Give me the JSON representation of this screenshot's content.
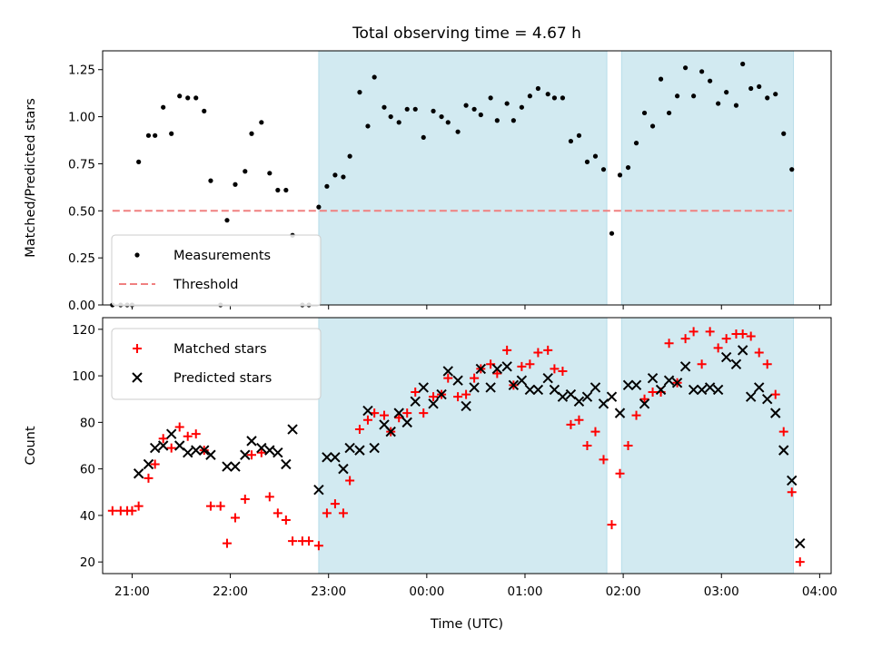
{
  "chart_data": [
    {
      "type": "scatter",
      "title": "Total observing time = 4.67 h",
      "xlabel": "",
      "ylabel": "Matched/Predicted stars",
      "xlim": [
        "20:42",
        "04:07"
      ],
      "ylim": [
        0,
        1.35
      ],
      "yticks": [
        "0.00",
        "0.25",
        "0.50",
        "0.75",
        "1.00",
        "1.25"
      ],
      "shaded_intervals": [
        [
          "22:54",
          "01:50"
        ],
        [
          "01:59",
          "03:44"
        ]
      ],
      "shade_color": "#add8e6",
      "legend_position": "lower-left",
      "series": [
        {
          "name": "Measurements",
          "style": "dot",
          "color": "#000000",
          "points": [
            [
              "20:48",
              0.0
            ],
            [
              "20:53",
              0.0
            ],
            [
              "20:57",
              0.0
            ],
            [
              "21:00",
              0.0
            ],
            [
              "21:04",
              0.76
            ],
            [
              "21:10",
              0.9
            ],
            [
              "21:14",
              0.9
            ],
            [
              "21:19",
              1.05
            ],
            [
              "21:24",
              0.91
            ],
            [
              "21:29",
              1.11
            ],
            [
              "21:34",
              1.1
            ],
            [
              "21:39",
              1.1
            ],
            [
              "21:44",
              1.03
            ],
            [
              "21:48",
              0.66
            ],
            [
              "21:54",
              0.0
            ],
            [
              "21:58",
              0.45
            ],
            [
              "22:03",
              0.64
            ],
            [
              "22:09",
              0.71
            ],
            [
              "22:13",
              0.91
            ],
            [
              "22:19",
              0.97
            ],
            [
              "22:24",
              0.7
            ],
            [
              "22:29",
              0.61
            ],
            [
              "22:34",
              0.61
            ],
            [
              "22:38",
              0.37
            ],
            [
              "22:44",
              0.0
            ],
            [
              "22:48",
              0.0
            ],
            [
              "22:54",
              0.52
            ],
            [
              "22:59",
              0.63
            ],
            [
              "23:04",
              0.69
            ],
            [
              "23:09",
              0.68
            ],
            [
              "23:13",
              0.79
            ],
            [
              "23:19",
              1.13
            ],
            [
              "23:24",
              0.95
            ],
            [
              "23:28",
              1.21
            ],
            [
              "23:34",
              1.05
            ],
            [
              "23:38",
              1.0
            ],
            [
              "23:43",
              0.97
            ],
            [
              "23:48",
              1.04
            ],
            [
              "23:53",
              1.04
            ],
            [
              "23:58",
              0.89
            ],
            [
              "00:04",
              1.03
            ],
            [
              "00:09",
              1.0
            ],
            [
              "00:13",
              0.97
            ],
            [
              "00:19",
              0.92
            ],
            [
              "00:24",
              1.06
            ],
            [
              "00:29",
              1.04
            ],
            [
              "00:33",
              1.01
            ],
            [
              "00:39",
              1.1
            ],
            [
              "00:43",
              0.98
            ],
            [
              "00:49",
              1.07
            ],
            [
              "00:53",
              0.98
            ],
            [
              "00:58",
              1.05
            ],
            [
              "01:03",
              1.11
            ],
            [
              "01:08",
              1.15
            ],
            [
              "01:14",
              1.12
            ],
            [
              "01:18",
              1.1
            ],
            [
              "01:23",
              1.1
            ],
            [
              "01:28",
              0.87
            ],
            [
              "01:33",
              0.9
            ],
            [
              "01:38",
              0.76
            ],
            [
              "01:43",
              0.79
            ],
            [
              "01:48",
              0.72
            ],
            [
              "01:53",
              0.38
            ],
            [
              "01:58",
              0.69
            ],
            [
              "02:03",
              0.73
            ],
            [
              "02:08",
              0.86
            ],
            [
              "02:13",
              1.02
            ],
            [
              "02:18",
              0.95
            ],
            [
              "02:23",
              1.2
            ],
            [
              "02:28",
              1.02
            ],
            [
              "02:33",
              1.11
            ],
            [
              "02:38",
              1.26
            ],
            [
              "02:43",
              1.11
            ],
            [
              "02:48",
              1.24
            ],
            [
              "02:53",
              1.19
            ],
            [
              "02:58",
              1.07
            ],
            [
              "03:03",
              1.13
            ],
            [
              "03:09",
              1.06
            ],
            [
              "03:13",
              1.28
            ],
            [
              "03:18",
              1.15
            ],
            [
              "03:23",
              1.16
            ],
            [
              "03:28",
              1.1
            ],
            [
              "03:33",
              1.12
            ],
            [
              "03:38",
              0.91
            ],
            [
              "03:43",
              0.72
            ]
          ]
        },
        {
          "name": "Threshold",
          "style": "dashed-line",
          "color": "#f08080",
          "points": [
            [
              "20:48",
              0.5
            ],
            [
              "03:43",
              0.5
            ]
          ]
        }
      ]
    },
    {
      "type": "scatter",
      "title": "",
      "xlabel": "Time (UTC)",
      "ylabel": "Count",
      "xlim": [
        "20:42",
        "04:07"
      ],
      "ylim": [
        15,
        125
      ],
      "yticks": [
        "20",
        "40",
        "60",
        "80",
        "100",
        "120"
      ],
      "xticks": [
        "21:00",
        "22:00",
        "23:00",
        "00:00",
        "01:00",
        "02:00",
        "03:00",
        "04:00"
      ],
      "shaded_intervals": [
        [
          "22:54",
          "01:50"
        ],
        [
          "01:59",
          "03:44"
        ]
      ],
      "shade_color": "#add8e6",
      "legend_position": "upper-left",
      "series": [
        {
          "name": "Matched stars",
          "style": "plus",
          "color": "#ff0000",
          "points": [
            [
              "20:48",
              42
            ],
            [
              "20:53",
              42
            ],
            [
              "20:57",
              42
            ],
            [
              "21:00",
              42
            ],
            [
              "21:04",
              44
            ],
            [
              "21:10",
              56
            ],
            [
              "21:14",
              62
            ],
            [
              "21:19",
              73
            ],
            [
              "21:24",
              69
            ],
            [
              "21:29",
              78
            ],
            [
              "21:34",
              74
            ],
            [
              "21:39",
              75
            ],
            [
              "21:44",
              68
            ],
            [
              "21:48",
              44
            ],
            [
              "21:54",
              44
            ],
            [
              "21:58",
              28
            ],
            [
              "22:03",
              39
            ],
            [
              "22:09",
              47
            ],
            [
              "22:13",
              66
            ],
            [
              "22:19",
              67
            ],
            [
              "22:24",
              48
            ],
            [
              "22:29",
              41
            ],
            [
              "22:34",
              38
            ],
            [
              "22:38",
              29
            ],
            [
              "22:44",
              29
            ],
            [
              "22:48",
              29
            ],
            [
              "22:54",
              27
            ],
            [
              "22:59",
              41
            ],
            [
              "23:04",
              45
            ],
            [
              "23:09",
              41
            ],
            [
              "23:13",
              55
            ],
            [
              "23:19",
              77
            ],
            [
              "23:24",
              81
            ],
            [
              "23:28",
              84
            ],
            [
              "23:34",
              83
            ],
            [
              "23:38",
              76
            ],
            [
              "23:43",
              82
            ],
            [
              "23:48",
              84
            ],
            [
              "23:53",
              93
            ],
            [
              "23:58",
              84
            ],
            [
              "00:04",
              91
            ],
            [
              "00:09",
              92
            ],
            [
              "00:13",
              99
            ],
            [
              "00:19",
              91
            ],
            [
              "00:24",
              92
            ],
            [
              "00:29",
              99
            ],
            [
              "00:33",
              103
            ],
            [
              "00:39",
              105
            ],
            [
              "00:43",
              101
            ],
            [
              "00:49",
              111
            ],
            [
              "00:53",
              96
            ],
            [
              "00:58",
              104
            ],
            [
              "01:03",
              105
            ],
            [
              "01:08",
              110
            ],
            [
              "01:14",
              111
            ],
            [
              "01:18",
              103
            ],
            [
              "01:23",
              102
            ],
            [
              "01:28",
              79
            ],
            [
              "01:33",
              81
            ],
            [
              "01:38",
              70
            ],
            [
              "01:43",
              76
            ],
            [
              "01:48",
              64
            ],
            [
              "01:53",
              36
            ],
            [
              "01:58",
              58
            ],
            [
              "02:03",
              70
            ],
            [
              "02:08",
              83
            ],
            [
              "02:13",
              90
            ],
            [
              "02:18",
              93
            ],
            [
              "02:23",
              93
            ],
            [
              "02:28",
              114
            ],
            [
              "02:33",
              97
            ],
            [
              "02:38",
              116
            ],
            [
              "02:43",
              119
            ],
            [
              "02:48",
              105
            ],
            [
              "02:53",
              119
            ],
            [
              "02:58",
              112
            ],
            [
              "03:03",
              116
            ],
            [
              "03:09",
              118
            ],
            [
              "03:13",
              118
            ],
            [
              "03:18",
              117
            ],
            [
              "03:23",
              110
            ],
            [
              "03:28",
              105
            ],
            [
              "03:33",
              92
            ],
            [
              "03:38",
              76
            ],
            [
              "03:43",
              50
            ],
            [
              "03:48",
              20
            ]
          ]
        },
        {
          "name": "Predicted stars",
          "style": "x",
          "color": "#000000",
          "points": [
            [
              "21:04",
              58
            ],
            [
              "21:10",
              62
            ],
            [
              "21:14",
              69
            ],
            [
              "21:19",
              70
            ],
            [
              "21:24",
              75
            ],
            [
              "21:29",
              70
            ],
            [
              "21:34",
              67
            ],
            [
              "21:39",
              68
            ],
            [
              "21:44",
              68
            ],
            [
              "21:48",
              66
            ],
            [
              "21:58",
              61
            ],
            [
              "22:03",
              61
            ],
            [
              "22:09",
              66
            ],
            [
              "22:13",
              72
            ],
            [
              "22:19",
              69
            ],
            [
              "22:24",
              68
            ],
            [
              "22:29",
              67
            ],
            [
              "22:34",
              62
            ],
            [
              "22:38",
              77
            ],
            [
              "22:54",
              51
            ],
            [
              "22:59",
              65
            ],
            [
              "23:04",
              65
            ],
            [
              "23:09",
              60
            ],
            [
              "23:13",
              69
            ],
            [
              "23:19",
              68
            ],
            [
              "23:24",
              85
            ],
            [
              "23:28",
              69
            ],
            [
              "23:34",
              79
            ],
            [
              "23:38",
              76
            ],
            [
              "23:43",
              84
            ],
            [
              "23:48",
              80
            ],
            [
              "23:53",
              89
            ],
            [
              "23:58",
              95
            ],
            [
              "00:04",
              88
            ],
            [
              "00:09",
              92
            ],
            [
              "00:13",
              102
            ],
            [
              "00:19",
              98
            ],
            [
              "00:24",
              87
            ],
            [
              "00:29",
              95
            ],
            [
              "00:33",
              103
            ],
            [
              "00:39",
              95
            ],
            [
              "00:43",
              103
            ],
            [
              "00:49",
              104
            ],
            [
              "00:53",
              96
            ],
            [
              "00:58",
              98
            ],
            [
              "01:03",
              94
            ],
            [
              "01:08",
              94
            ],
            [
              "01:14",
              99
            ],
            [
              "01:18",
              94
            ],
            [
              "01:23",
              91
            ],
            [
              "01:28",
              92
            ],
            [
              "01:33",
              89
            ],
            [
              "01:38",
              91
            ],
            [
              "01:43",
              95
            ],
            [
              "01:48",
              88
            ],
            [
              "01:53",
              91
            ],
            [
              "01:58",
              84
            ],
            [
              "02:03",
              96
            ],
            [
              "02:08",
              96
            ],
            [
              "02:13",
              88
            ],
            [
              "02:18",
              99
            ],
            [
              "02:23",
              94
            ],
            [
              "02:28",
              98
            ],
            [
              "02:33",
              97
            ],
            [
              "02:38",
              104
            ],
            [
              "02:43",
              94
            ],
            [
              "02:48",
              94
            ],
            [
              "02:53",
              95
            ],
            [
              "02:58",
              94
            ],
            [
              "03:03",
              108
            ],
            [
              "03:09",
              105
            ],
            [
              "03:13",
              111
            ],
            [
              "03:18",
              91
            ],
            [
              "03:23",
              95
            ],
            [
              "03:28",
              90
            ],
            [
              "03:33",
              84
            ],
            [
              "03:38",
              68
            ],
            [
              "03:43",
              55
            ],
            [
              "03:48",
              28
            ]
          ]
        }
      ]
    }
  ]
}
